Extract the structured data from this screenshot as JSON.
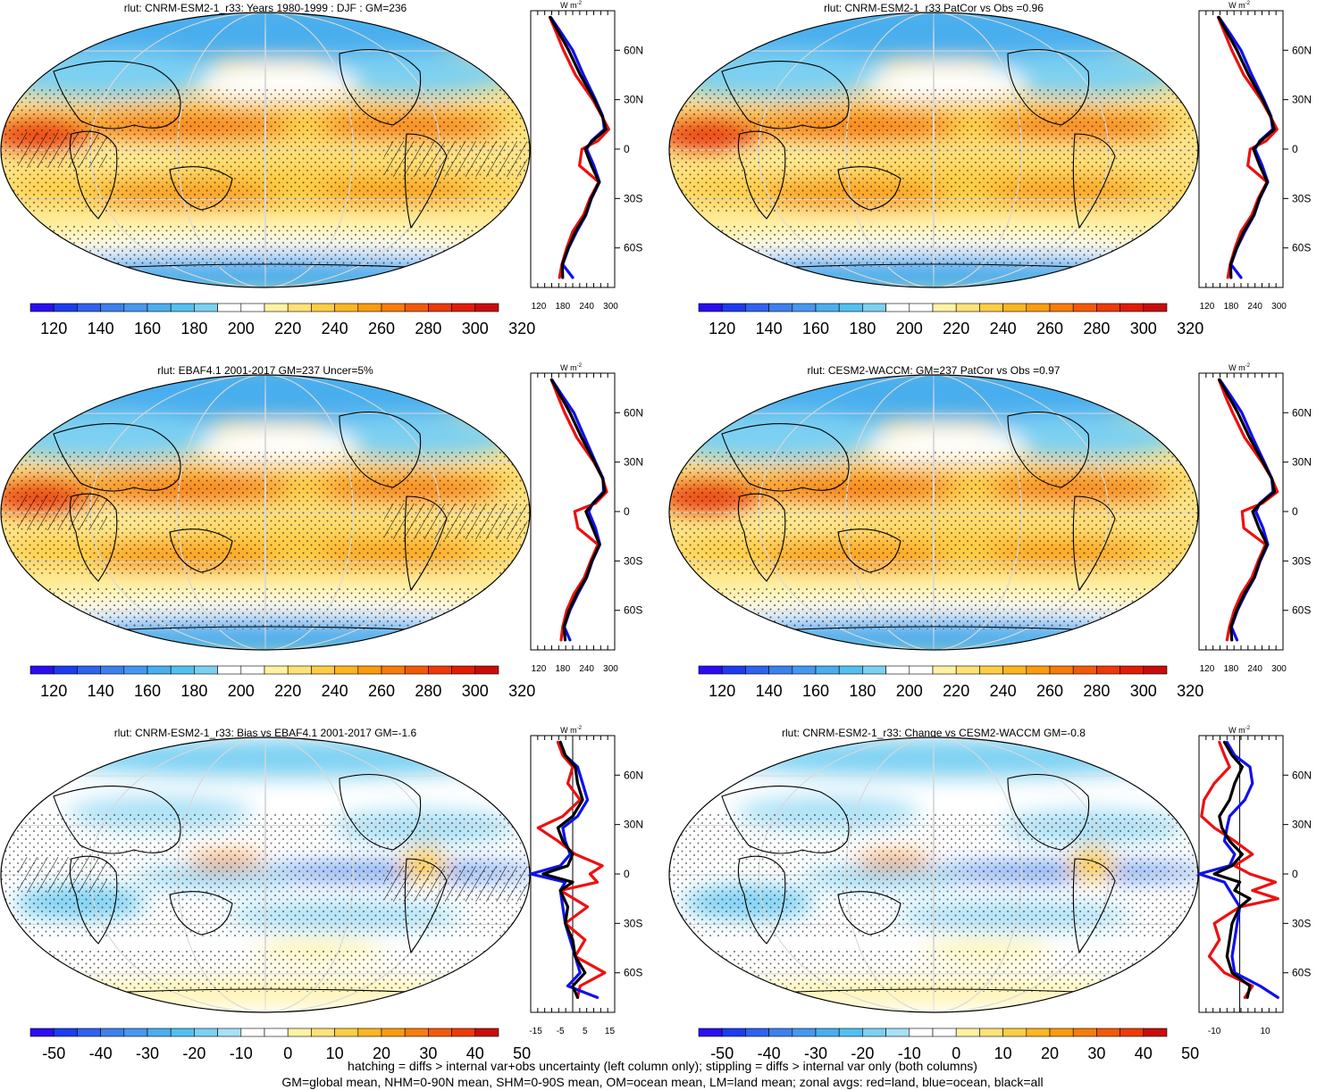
{
  "colors": {
    "ocean_line": "#1010ee",
    "land_line": "#ee1010",
    "all_line": "#000000",
    "abs_scale": [
      "#2a0ef0",
      "#1c3cee",
      "#2f62ee",
      "#3c80ee",
      "#4697ef",
      "#4aaeee",
      "#52c0f0",
      "#7cd0f2",
      "#ffffff",
      "#ffffff",
      "#fff2a2",
      "#ffe177",
      "#ffcd43",
      "#fdb522",
      "#fa9b10",
      "#f77c0a",
      "#f25a08",
      "#ec3a08",
      "#e01c08",
      "#c80c0c"
    ],
    "diff_scale": [
      "#2a0ef0",
      "#1c3cee",
      "#2f62ee",
      "#3c80ee",
      "#4697ef",
      "#4aaeee",
      "#52c0f0",
      "#7cd0f2",
      "#a8e0f6",
      "#ffffff",
      "#ffffff",
      "#fff2a2",
      "#ffe177",
      "#ffcd43",
      "#fdb522",
      "#fa9b10",
      "#f77c0a",
      "#f25a08",
      "#ec3a08",
      "#c80c0c"
    ]
  },
  "zonal_axis": {
    "units": "W m",
    "units_sup": "-2",
    "lat_ticks": [
      "60N",
      "30N",
      "0",
      "30S",
      "60S"
    ],
    "lat_values": [
      60,
      30,
      0,
      -30,
      -60
    ]
  },
  "panels": [
    {
      "id": "model-mean",
      "title": "rlut: CNRM-ESM2-1_r33: Years 1980-1999 : DJF : GM=236",
      "colorbar_labels": [
        "120",
        "140",
        "160",
        "180",
        "200",
        "220",
        "240",
        "260",
        "280",
        "300",
        "320"
      ],
      "zonal_xticks": [
        "120",
        "180",
        "240",
        "300"
      ],
      "zonal_xrange": [
        100,
        310
      ],
      "zonal_xtick_values": [
        120,
        180,
        240,
        300
      ]
    },
    {
      "id": "patcor-model",
      "title": "rlut: CNRM-ESM2-1_r33 PatCor vs Obs =0.96",
      "colorbar_labels": [
        "120",
        "140",
        "160",
        "180",
        "200",
        "220",
        "240",
        "260",
        "280",
        "300",
        "320"
      ],
      "zonal_xticks": [
        "120",
        "180",
        "240",
        "300"
      ],
      "zonal_xrange": [
        100,
        310
      ],
      "zonal_xtick_values": [
        120,
        180,
        240,
        300
      ]
    },
    {
      "id": "obs",
      "title": "rlut: EBAF4.1 2001-2017 GM=237 Uncer=5%",
      "colorbar_labels": [
        "120",
        "140",
        "160",
        "180",
        "200",
        "220",
        "240",
        "260",
        "280",
        "300",
        "320"
      ],
      "zonal_xticks": [
        "120",
        "180",
        "240",
        "300"
      ],
      "zonal_xrange": [
        100,
        310
      ],
      "zonal_xtick_values": [
        120,
        180,
        240,
        300
      ]
    },
    {
      "id": "cesm",
      "title": "rlut: CESM2-WACCM: GM=237 PatCor vs Obs =0.97",
      "colorbar_labels": [
        "120",
        "140",
        "160",
        "180",
        "200",
        "220",
        "240",
        "260",
        "280",
        "300",
        "320"
      ],
      "zonal_xticks": [
        "120",
        "180",
        "240",
        "300"
      ],
      "zonal_xrange": [
        100,
        310
      ],
      "zonal_xtick_values": [
        120,
        180,
        240,
        300
      ]
    },
    {
      "id": "bias",
      "title": "rlut: CNRM-ESM2-1_r33: Bias vs EBAF4.1 2001-2017 GM=-1.6",
      "colorbar_labels": [
        "-50",
        "-40",
        "-30",
        "-20",
        "-10",
        "0",
        "10",
        "20",
        "30",
        "40",
        "50"
      ],
      "zonal_xticks": [
        "-15",
        "-5",
        "5",
        "15"
      ],
      "zonal_xrange": [
        -17,
        17
      ],
      "zonal_xtick_values": [
        -15,
        -5,
        5,
        15
      ]
    },
    {
      "id": "change",
      "title": "rlut: CNRM-ESM2-1_r33: Change vs CESM2-WACCM GM=-0.8",
      "colorbar_labels": [
        "-50",
        "-40",
        "-30",
        "-20",
        "-10",
        "0",
        "10",
        "20",
        "30",
        "40",
        "50"
      ],
      "zonal_xticks": [
        "-10",
        "10"
      ],
      "zonal_xrange": [
        -16,
        17
      ],
      "zonal_xtick_values": [
        -10,
        10
      ]
    }
  ],
  "chart_data": [
    {
      "type": "line",
      "title": "rlut: CNRM-ESM2-1_r33: Years 1980-1999 : DJF : GM=236",
      "xlabel": "W m-2",
      "ylabel": "latitude",
      "xlim": [
        100,
        310
      ],
      "series": [
        {
          "name": "land",
          "lat": [
            80,
            70,
            60,
            45,
            30,
            20,
            12,
            5,
            0,
            -10,
            -20,
            -30,
            -40,
            -50,
            -60,
            -70,
            -78
          ],
          "values": [
            148,
            165,
            182,
            212,
            255,
            278,
            295,
            268,
            228,
            222,
            270,
            248,
            232,
            205,
            190,
            178,
            172
          ]
        },
        {
          "name": "ocean",
          "lat": [
            80,
            70,
            60,
            45,
            30,
            20,
            12,
            5,
            0,
            -10,
            -20,
            -30,
            -40,
            -50,
            -60,
            -70,
            -78
          ],
          "values": [
            150,
            178,
            205,
            232,
            262,
            280,
            284,
            252,
            240,
            258,
            272,
            252,
            238,
            215,
            195,
            180,
            205
          ]
        },
        {
          "name": "all",
          "lat": [
            80,
            70,
            60,
            45,
            30,
            20,
            12,
            5,
            0,
            -10,
            -20,
            -30,
            -40,
            -50,
            -60,
            -70,
            -78
          ],
          "values": [
            149,
            172,
            195,
            224,
            259,
            279,
            288,
            255,
            236,
            252,
            271,
            251,
            237,
            212,
            194,
            179,
            180
          ]
        }
      ]
    },
    {
      "type": "line",
      "title": "rlut: CNRM-ESM2-1_r33 PatCor vs Obs =0.96",
      "xlabel": "W m-2",
      "ylabel": "latitude",
      "xlim": [
        100,
        310
      ],
      "series": [
        {
          "name": "land",
          "lat": [
            80,
            70,
            60,
            45,
            30,
            20,
            12,
            5,
            0,
            -10,
            -20,
            -30,
            -40,
            -50,
            -60,
            -70,
            -78
          ],
          "values": [
            148,
            165,
            182,
            212,
            255,
            278,
            295,
            268,
            228,
            222,
            270,
            248,
            232,
            205,
            190,
            178,
            172
          ]
        },
        {
          "name": "ocean",
          "lat": [
            80,
            70,
            60,
            45,
            30,
            20,
            12,
            5,
            0,
            -10,
            -20,
            -30,
            -40,
            -50,
            -60,
            -70,
            -78
          ],
          "values": [
            150,
            178,
            205,
            232,
            262,
            280,
            284,
            252,
            240,
            258,
            272,
            252,
            238,
            215,
            195,
            180,
            205
          ]
        },
        {
          "name": "all",
          "lat": [
            80,
            70,
            60,
            45,
            30,
            20,
            12,
            5,
            0,
            -10,
            -20,
            -30,
            -40,
            -50,
            -60,
            -70,
            -78
          ],
          "values": [
            149,
            172,
            195,
            224,
            259,
            279,
            288,
            255,
            236,
            252,
            271,
            251,
            237,
            212,
            194,
            179,
            180
          ]
        }
      ]
    },
    {
      "type": "line",
      "title": "rlut: EBAF4.1 2001-2017 GM=237 Uncer=5%",
      "xlabel": "W m-2",
      "ylabel": "latitude",
      "xlim": [
        100,
        310
      ],
      "series": [
        {
          "name": "land",
          "lat": [
            80,
            70,
            60,
            45,
            30,
            20,
            12,
            5,
            0,
            -10,
            -20,
            -30,
            -40,
            -50,
            -60,
            -70,
            -78
          ],
          "values": [
            152,
            168,
            185,
            215,
            258,
            280,
            290,
            262,
            210,
            218,
            268,
            250,
            234,
            208,
            190,
            180,
            176
          ]
        },
        {
          "name": "ocean",
          "lat": [
            80,
            70,
            60,
            45,
            30,
            20,
            12,
            5,
            0,
            -10,
            -20,
            -30,
            -40,
            -50,
            -60,
            -70,
            -78
          ],
          "values": [
            153,
            180,
            208,
            235,
            262,
            281,
            282,
            255,
            245,
            262,
            273,
            254,
            240,
            218,
            198,
            184,
            198
          ]
        },
        {
          "name": "all",
          "lat": [
            80,
            70,
            60,
            45,
            30,
            20,
            12,
            5,
            0,
            -10,
            -20,
            -30,
            -40,
            -50,
            -60,
            -70,
            -78
          ],
          "values": [
            152,
            175,
            198,
            227,
            260,
            280,
            285,
            257,
            238,
            255,
            272,
            253,
            239,
            215,
            196,
            183,
            186
          ]
        }
      ]
    },
    {
      "type": "line",
      "title": "rlut: CESM2-WACCM: GM=237 PatCor vs Obs =0.97",
      "xlabel": "W m-2",
      "ylabel": "latitude",
      "xlim": [
        100,
        310
      ],
      "series": [
        {
          "name": "land",
          "lat": [
            80,
            70,
            60,
            45,
            30,
            20,
            12,
            5,
            0,
            -10,
            -20,
            -30,
            -40,
            -50,
            -60,
            -70,
            -78
          ],
          "values": [
            150,
            166,
            184,
            214,
            257,
            282,
            296,
            258,
            208,
            212,
            266,
            248,
            232,
            206,
            188,
            176,
            170
          ]
        },
        {
          "name": "ocean",
          "lat": [
            80,
            70,
            60,
            45,
            30,
            20,
            12,
            5,
            0,
            -10,
            -20,
            -30,
            -40,
            -50,
            -60,
            -70,
            -78
          ],
          "values": [
            152,
            180,
            207,
            234,
            263,
            282,
            285,
            252,
            242,
            260,
            272,
            253,
            239,
            216,
            196,
            181,
            195
          ]
        },
        {
          "name": "all",
          "lat": [
            80,
            70,
            60,
            45,
            30,
            20,
            12,
            5,
            0,
            -10,
            -20,
            -30,
            -40,
            -50,
            -60,
            -70,
            -78
          ],
          "values": [
            151,
            174,
            197,
            226,
            260,
            282,
            289,
            254,
            234,
            250,
            270,
            252,
            238,
            213,
            194,
            180,
            182
          ]
        }
      ]
    },
    {
      "type": "line",
      "title": "rlut: CNRM-ESM2-1_r33: Bias vs EBAF4.1 2001-2017 GM=-1.6",
      "xlabel": "W m-2",
      "ylabel": "latitude",
      "xlim": [
        -17,
        17
      ],
      "series": [
        {
          "name": "land",
          "lat": [
            80,
            72,
            65,
            55,
            45,
            35,
            28,
            20,
            12,
            5,
            0,
            -5,
            -10,
            -20,
            -30,
            -40,
            -50,
            -60,
            -68,
            -75
          ],
          "values": [
            -6,
            -4,
            0,
            -2,
            3,
            -4,
            -14,
            -6,
            1,
            12,
            7,
            10,
            -5,
            6,
            -3,
            5,
            1,
            13,
            3,
            2
          ]
        },
        {
          "name": "ocean",
          "lat": [
            80,
            72,
            65,
            55,
            45,
            35,
            28,
            20,
            12,
            5,
            0,
            -5,
            -10,
            -20,
            -30,
            -40,
            -50,
            -60,
            -68,
            -75
          ],
          "values": [
            -5,
            -3,
            2,
            4,
            6,
            2,
            -4,
            -3,
            -1,
            -5,
            -17,
            -3,
            -5,
            -4,
            -3,
            -1,
            1,
            3,
            -2,
            10
          ]
        },
        {
          "name": "all",
          "lat": [
            80,
            72,
            65,
            55,
            45,
            35,
            28,
            20,
            12,
            5,
            0,
            -5,
            -10,
            -20,
            -30,
            -40,
            -50,
            -60,
            -68,
            -75
          ],
          "values": [
            -5,
            -3,
            1,
            2,
            4,
            0,
            -6,
            -4,
            0,
            -2,
            -12,
            0,
            -5,
            -2,
            -3,
            0,
            1,
            5,
            0,
            2
          ]
        }
      ]
    },
    {
      "type": "line",
      "title": "rlut: CNRM-ESM2-1_r33: Change vs CESM2-WACCM GM=-0.8",
      "xlabel": "W m-2",
      "ylabel": "latitude",
      "xlim": [
        -16,
        17
      ],
      "series": [
        {
          "name": "land",
          "lat": [
            80,
            72,
            65,
            55,
            45,
            35,
            28,
            20,
            12,
            5,
            0,
            -5,
            -10,
            -15,
            -20,
            -30,
            -40,
            -50,
            -60,
            -68,
            -75
          ],
          "values": [
            -8,
            -6,
            -4,
            -10,
            -14,
            -15,
            -10,
            -2,
            5,
            -2,
            4,
            14,
            5,
            15,
            0,
            -10,
            -8,
            -12,
            -6,
            5,
            2
          ]
        },
        {
          "name": "ocean",
          "lat": [
            80,
            72,
            65,
            55,
            45,
            35,
            28,
            20,
            12,
            5,
            0,
            -5,
            -10,
            -15,
            -20,
            -30,
            -40,
            -50,
            -60,
            -68,
            -75
          ],
          "values": [
            -5,
            -2,
            4,
            5,
            2,
            -4,
            -5,
            -6,
            -2,
            -4,
            -16,
            -6,
            -4,
            -2,
            0,
            -1,
            -2,
            -3,
            -2,
            8,
            15
          ]
        },
        {
          "name": "all",
          "lat": [
            80,
            72,
            65,
            55,
            45,
            35,
            28,
            20,
            12,
            5,
            0,
            -5,
            -10,
            -15,
            -20,
            -30,
            -40,
            -50,
            -60,
            -68,
            -75
          ],
          "values": [
            -6,
            -3,
            1,
            -2,
            -4,
            -8,
            -7,
            -4,
            1,
            -3,
            -10,
            0,
            -2,
            4,
            0,
            -3,
            -4,
            -5,
            -3,
            4,
            3
          ]
        }
      ]
    }
  ],
  "footer": {
    "line1": "hatching = diffs > internal var+obs uncertainty (left column only); stippling = diffs > internal var only (both columns)",
    "line2": "GM=global mean, NHM=0-90N mean, SHM=0-90S mean, OM=ocean mean, LM=land mean; zonal avgs: red=land, blue=ocean, black=all"
  }
}
